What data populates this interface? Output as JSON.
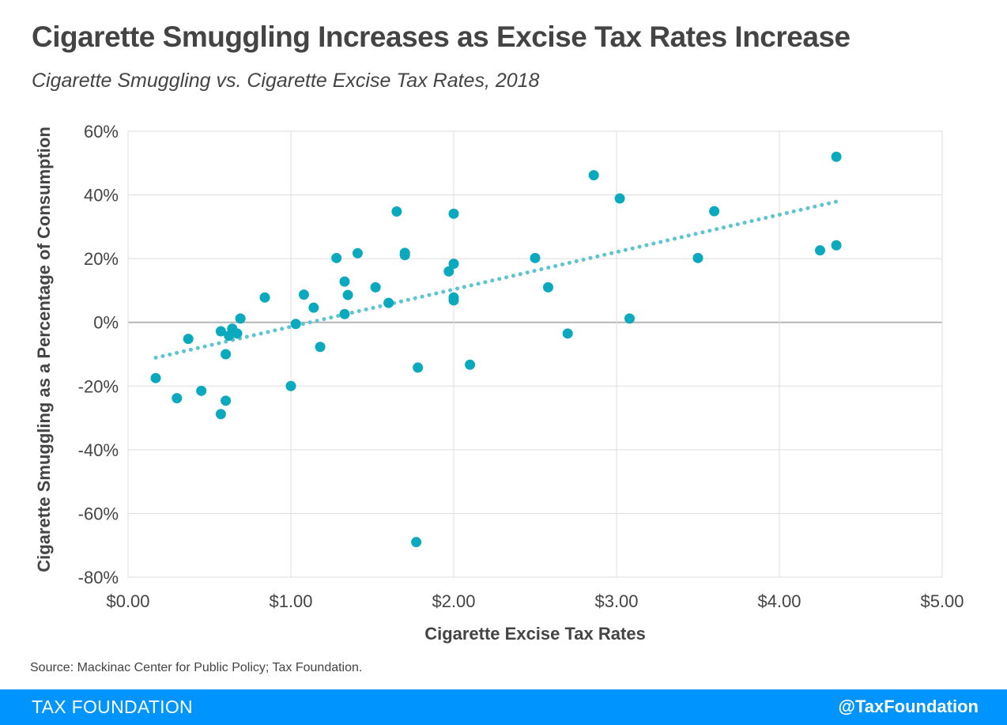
{
  "header": {
    "title": "Cigarette Smuggling Increases as Excise Tax Rates Increase",
    "subtitle": "Cigarette Smuggling vs. Cigarette Excise Tax Rates, 2018"
  },
  "source": "Source: Mackinac Center for Public Policy; Tax Foundation.",
  "footer": {
    "brand": "TAX FOUNDATION",
    "handle": "@TaxFoundation"
  },
  "colors": {
    "point": "#0aa9bd",
    "trendline": "#5ec4d4",
    "footer": "#0094ff",
    "grid": "#dddddd",
    "zero_line": "#b5b5b5"
  },
  "chart_data": {
    "type": "scatter",
    "xlabel": "Cigarette Excise Tax Rates",
    "ylabel": "Cigarette Smuggling as a Percentage of Consumption",
    "xlim": [
      0,
      5
    ],
    "ylim": [
      -80,
      60
    ],
    "x_ticks": [
      0,
      1,
      2,
      3,
      4,
      5
    ],
    "x_tick_labels": [
      "$0.00",
      "$1.00",
      "$2.00",
      "$3.00",
      "$4.00",
      "$5.00"
    ],
    "y_ticks": [
      60,
      40,
      20,
      0,
      -20,
      -40,
      -60,
      -80
    ],
    "y_tick_labels": [
      "60%",
      "40%",
      "20%",
      "0%",
      "-20%",
      "-40%",
      "-60%",
      "-80%"
    ],
    "grid": true,
    "trendline": {
      "style": "dotted",
      "points": [
        [
          0.17,
          -11.1
        ],
        [
          4.35,
          37.9
        ]
      ]
    },
    "points": [
      {
        "x": 0.17,
        "y": -17.5
      },
      {
        "x": 0.3,
        "y": -23.8
      },
      {
        "x": 0.37,
        "y": -5.2
      },
      {
        "x": 0.45,
        "y": -21.5
      },
      {
        "x": 0.57,
        "y": -28.8
      },
      {
        "x": 0.57,
        "y": -2.8
      },
      {
        "x": 0.6,
        "y": -24.6
      },
      {
        "x": 0.6,
        "y": -10.0
      },
      {
        "x": 0.62,
        "y": -4.2
      },
      {
        "x": 0.64,
        "y": -2.0
      },
      {
        "x": 0.67,
        "y": -3.5
      },
      {
        "x": 0.69,
        "y": 1.2
      },
      {
        "x": 0.84,
        "y": 7.8
      },
      {
        "x": 1.0,
        "y": -20.0
      },
      {
        "x": 1.03,
        "y": -0.5
      },
      {
        "x": 1.08,
        "y": 8.7
      },
      {
        "x": 1.14,
        "y": 4.6
      },
      {
        "x": 1.18,
        "y": -7.7
      },
      {
        "x": 1.28,
        "y": 20.2
      },
      {
        "x": 1.33,
        "y": 12.8
      },
      {
        "x": 1.33,
        "y": 2.6
      },
      {
        "x": 1.35,
        "y": 8.6
      },
      {
        "x": 1.41,
        "y": 21.7
      },
      {
        "x": 1.52,
        "y": 11.0
      },
      {
        "x": 1.6,
        "y": 6.1
      },
      {
        "x": 1.65,
        "y": 34.8
      },
      {
        "x": 1.7,
        "y": 21.8
      },
      {
        "x": 1.7,
        "y": 21.1
      },
      {
        "x": 1.77,
        "y": -69.0
      },
      {
        "x": 1.78,
        "y": -14.2
      },
      {
        "x": 1.97,
        "y": 16.0
      },
      {
        "x": 2.0,
        "y": 34.1
      },
      {
        "x": 2.0,
        "y": 18.4
      },
      {
        "x": 2.0,
        "y": 7.8
      },
      {
        "x": 2.0,
        "y": 6.9
      },
      {
        "x": 2.1,
        "y": -13.3
      },
      {
        "x": 2.5,
        "y": 20.2
      },
      {
        "x": 2.58,
        "y": 11.0
      },
      {
        "x": 2.7,
        "y": -3.5
      },
      {
        "x": 2.86,
        "y": 46.2
      },
      {
        "x": 3.02,
        "y": 38.9
      },
      {
        "x": 3.08,
        "y": 1.2
      },
      {
        "x": 3.5,
        "y": 20.2
      },
      {
        "x": 3.6,
        "y": 34.9
      },
      {
        "x": 4.25,
        "y": 22.6
      },
      {
        "x": 4.35,
        "y": 52.0
      },
      {
        "x": 4.35,
        "y": 24.2
      }
    ]
  }
}
